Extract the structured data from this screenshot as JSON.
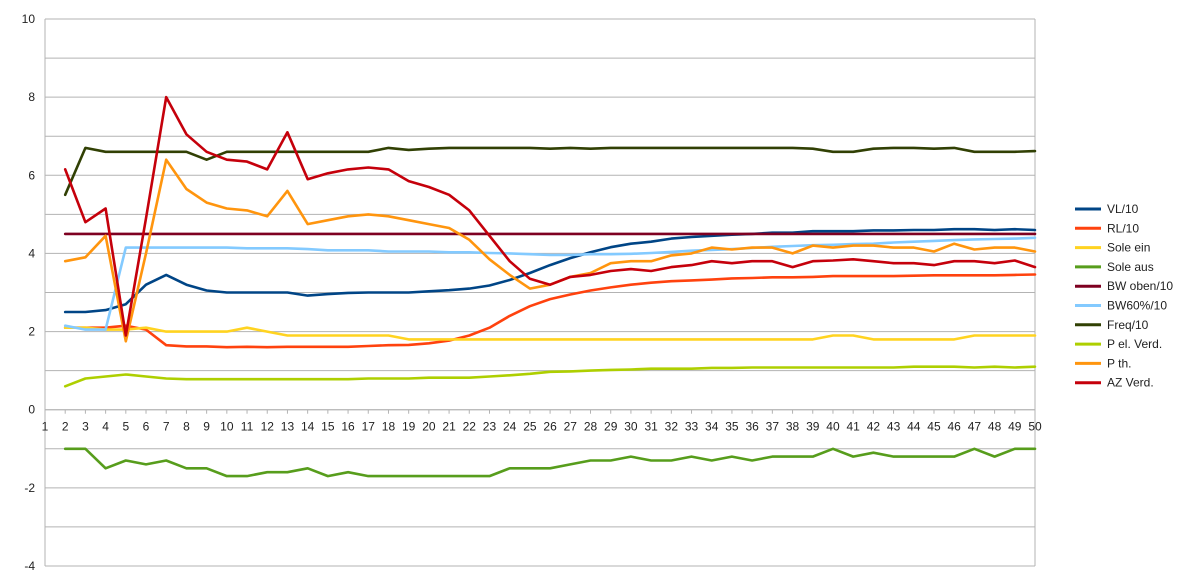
{
  "chart_data": {
    "type": "line",
    "title": "",
    "xlabel": "",
    "ylabel": "",
    "x_ticks": [
      "1",
      "2",
      "3",
      "4",
      "5",
      "6",
      "7",
      "8",
      "9",
      "10",
      "11",
      "12",
      "13",
      "14",
      "15",
      "16",
      "17",
      "18",
      "19",
      "20",
      "21",
      "22",
      "23",
      "24",
      "25",
      "26",
      "27",
      "28",
      "29",
      "30",
      "31",
      "32",
      "33",
      "34",
      "35",
      "36",
      "37",
      "38",
      "39",
      "40",
      "41",
      "42",
      "43",
      "44",
      "45",
      "46",
      "47",
      "48",
      "49",
      "50"
    ],
    "y_ticks": [
      -4,
      -2,
      0,
      2,
      4,
      6,
      8,
      10
    ],
    "xlim": [
      1,
      50
    ],
    "ylim": [
      -4,
      10
    ],
    "grid": true,
    "legend_position": "right",
    "x": [
      2,
      3,
      4,
      5,
      6,
      7,
      8,
      9,
      10,
      11,
      12,
      13,
      14,
      15,
      16,
      17,
      18,
      19,
      20,
      21,
      22,
      23,
      24,
      25,
      26,
      27,
      28,
      29,
      30,
      31,
      32,
      33,
      34,
      35,
      36,
      37,
      38,
      39,
      40,
      41,
      42,
      43,
      44,
      45,
      46,
      47,
      48,
      49,
      50
    ],
    "series": [
      {
        "name": "VL/10",
        "color": "#004586",
        "values": [
          2.5,
          2.5,
          2.55,
          2.7,
          3.2,
          3.45,
          3.2,
          3.05,
          3.0,
          3.0,
          3.0,
          3.0,
          2.92,
          2.96,
          2.99,
          3.0,
          3.0,
          3.0,
          3.03,
          3.06,
          3.1,
          3.18,
          3.32,
          3.5,
          3.7,
          3.88,
          4.03,
          4.16,
          4.25,
          4.3,
          4.38,
          4.42,
          4.45,
          4.48,
          4.5,
          4.53,
          4.53,
          4.57,
          4.57,
          4.57,
          4.59,
          4.59,
          4.6,
          4.6,
          4.62,
          4.62,
          4.6,
          4.62,
          4.6
        ]
      },
      {
        "name": "RL/10",
        "color": "#ff420e",
        "values": [
          2.1,
          2.1,
          2.1,
          2.15,
          2.05,
          1.65,
          1.62,
          1.62,
          1.6,
          1.61,
          1.6,
          1.61,
          1.61,
          1.61,
          1.61,
          1.63,
          1.65,
          1.66,
          1.7,
          1.77,
          1.9,
          2.1,
          2.4,
          2.65,
          2.83,
          2.95,
          3.05,
          3.13,
          3.2,
          3.25,
          3.29,
          3.31,
          3.33,
          3.36,
          3.37,
          3.39,
          3.39,
          3.4,
          3.42,
          3.42,
          3.42,
          3.42,
          3.43,
          3.44,
          3.44,
          3.44,
          3.44,
          3.45,
          3.46
        ]
      },
      {
        "name": "Sole ein",
        "color": "#ffd320",
        "values": [
          2.1,
          2.1,
          2.05,
          2.05,
          2.1,
          2.0,
          2.0,
          2.0,
          2.0,
          2.1,
          2.0,
          1.9,
          1.9,
          1.9,
          1.9,
          1.9,
          1.9,
          1.8,
          1.8,
          1.8,
          1.8,
          1.8,
          1.8,
          1.8,
          1.8,
          1.8,
          1.8,
          1.8,
          1.8,
          1.8,
          1.8,
          1.8,
          1.8,
          1.8,
          1.8,
          1.8,
          1.8,
          1.8,
          1.9,
          1.9,
          1.8,
          1.8,
          1.8,
          1.8,
          1.8,
          1.9,
          1.9,
          1.9,
          1.9
        ]
      },
      {
        "name": "Sole aus",
        "color": "#579d1c",
        "values": [
          -1.0,
          -1.0,
          -1.5,
          -1.3,
          -1.4,
          -1.3,
          -1.5,
          -1.5,
          -1.7,
          -1.7,
          -1.6,
          -1.6,
          -1.5,
          -1.7,
          -1.6,
          -1.7,
          -1.7,
          -1.7,
          -1.7,
          -1.7,
          -1.7,
          -1.7,
          -1.5,
          -1.5,
          -1.5,
          -1.4,
          -1.3,
          -1.3,
          -1.2,
          -1.3,
          -1.3,
          -1.2,
          -1.3,
          -1.2,
          -1.3,
          -1.2,
          -1.2,
          -1.2,
          -1.0,
          -1.2,
          -1.1,
          -1.2,
          -1.2,
          -1.2,
          -1.2,
          -1.0,
          -1.2,
          -1.0,
          -1.0
        ]
      },
      {
        "name": "BW oben/10",
        "color": "#7e0021",
        "values": [
          4.5,
          4.5,
          4.5,
          4.5,
          4.5,
          4.5,
          4.5,
          4.5,
          4.5,
          4.5,
          4.5,
          4.5,
          4.5,
          4.5,
          4.5,
          4.5,
          4.5,
          4.5,
          4.5,
          4.5,
          4.5,
          4.5,
          4.5,
          4.5,
          4.5,
          4.5,
          4.5,
          4.5,
          4.5,
          4.5,
          4.5,
          4.5,
          4.5,
          4.5,
          4.5,
          4.5,
          4.5,
          4.5,
          4.5,
          4.5,
          4.5,
          4.5,
          4.5,
          4.5,
          4.5,
          4.5,
          4.5,
          4.5,
          4.5
        ]
      },
      {
        "name": "BW60%/10",
        "color": "#83caff",
        "values": [
          2.15,
          2.05,
          2.05,
          4.15,
          4.15,
          4.15,
          4.15,
          4.15,
          4.15,
          4.13,
          4.13,
          4.13,
          4.11,
          4.08,
          4.08,
          4.08,
          4.05,
          4.05,
          4.05,
          4.03,
          4.03,
          4.01,
          4.0,
          3.98,
          3.96,
          3.96,
          3.98,
          3.98,
          3.99,
          4.01,
          4.04,
          4.07,
          4.09,
          4.11,
          4.14,
          4.17,
          4.19,
          4.21,
          4.22,
          4.24,
          4.25,
          4.28,
          4.3,
          4.32,
          4.34,
          4.36,
          4.37,
          4.38,
          4.4
        ]
      },
      {
        "name": "Freq/10",
        "color": "#314004",
        "values": [
          5.5,
          6.7,
          6.6,
          6.6,
          6.6,
          6.6,
          6.6,
          6.4,
          6.6,
          6.6,
          6.6,
          6.6,
          6.6,
          6.6,
          6.6,
          6.6,
          6.7,
          6.65,
          6.68,
          6.7,
          6.7,
          6.7,
          6.7,
          6.7,
          6.68,
          6.7,
          6.68,
          6.7,
          6.7,
          6.7,
          6.7,
          6.7,
          6.7,
          6.7,
          6.7,
          6.7,
          6.7,
          6.68,
          6.6,
          6.6,
          6.68,
          6.7,
          6.7,
          6.68,
          6.7,
          6.6,
          6.6,
          6.6,
          6.62
        ]
      },
      {
        "name": "P el. Verd.",
        "color": "#aecf00",
        "values": [
          0.6,
          0.8,
          0.85,
          0.9,
          0.85,
          0.8,
          0.78,
          0.78,
          0.78,
          0.78,
          0.78,
          0.78,
          0.78,
          0.78,
          0.78,
          0.8,
          0.8,
          0.8,
          0.82,
          0.82,
          0.82,
          0.85,
          0.88,
          0.92,
          0.97,
          0.98,
          1.0,
          1.02,
          1.03,
          1.05,
          1.05,
          1.05,
          1.07,
          1.07,
          1.08,
          1.08,
          1.08,
          1.08,
          1.08,
          1.08,
          1.08,
          1.08,
          1.1,
          1.1,
          1.1,
          1.08,
          1.1,
          1.08,
          1.1
        ]
      },
      {
        "name": "P th.",
        "color": "#ff950e",
        "values": [
          3.8,
          3.9,
          4.45,
          1.75,
          4.0,
          6.4,
          5.65,
          5.3,
          5.15,
          5.1,
          4.95,
          5.6,
          4.75,
          4.85,
          4.95,
          5.0,
          4.95,
          4.85,
          4.75,
          4.65,
          4.35,
          3.85,
          3.45,
          3.1,
          3.2,
          3.4,
          3.5,
          3.75,
          3.8,
          3.8,
          3.95,
          4.0,
          4.15,
          4.1,
          4.15,
          4.15,
          4.0,
          4.2,
          4.15,
          4.2,
          4.2,
          4.15,
          4.15,
          4.05,
          4.25,
          4.1,
          4.15,
          4.15,
          4.05
        ]
      },
      {
        "name": "AZ Verd.",
        "color": "#c5000b",
        "values": [
          6.15,
          4.8,
          5.15,
          1.9,
          4.9,
          8.0,
          7.05,
          6.6,
          6.4,
          6.35,
          6.15,
          7.1,
          5.9,
          6.05,
          6.15,
          6.2,
          6.15,
          5.85,
          5.7,
          5.5,
          5.1,
          4.45,
          3.8,
          3.35,
          3.2,
          3.4,
          3.45,
          3.55,
          3.6,
          3.55,
          3.65,
          3.7,
          3.8,
          3.75,
          3.8,
          3.8,
          3.65,
          3.8,
          3.82,
          3.85,
          3.8,
          3.75,
          3.75,
          3.7,
          3.8,
          3.8,
          3.75,
          3.82,
          3.65
        ]
      }
    ]
  }
}
